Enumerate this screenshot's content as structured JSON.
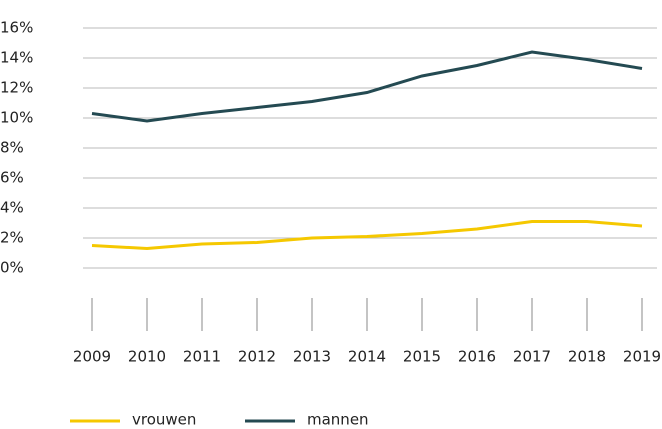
{
  "chart_data": {
    "type": "line",
    "categories": [
      "2009",
      "2010",
      "2011",
      "2012",
      "2013",
      "2014",
      "2015",
      "2016",
      "2017",
      "2018",
      "2019"
    ],
    "series": [
      {
        "name": "vrouwen",
        "color": "#f5c800",
        "values": [
          1.5,
          1.3,
          1.6,
          1.7,
          2.0,
          2.1,
          2.3,
          2.6,
          3.1,
          3.1,
          2.8
        ]
      },
      {
        "name": "mannen",
        "color": "#244a52",
        "values": [
          10.3,
          9.8,
          10.3,
          10.7,
          11.1,
          11.7,
          12.8,
          13.5,
          14.4,
          13.9,
          13.3
        ]
      }
    ],
    "ylim": [
      0,
      16
    ],
    "yticks": [
      {
        "value": 0,
        "label": "0%"
      },
      {
        "value": 2,
        "label": "2%"
      },
      {
        "value": 4,
        "label": "4%"
      },
      {
        "value": 6,
        "label": "6%"
      },
      {
        "value": 8,
        "label": "8%"
      },
      {
        "value": 10,
        "label": "10%"
      },
      {
        "value": 12,
        "label": "12%"
      },
      {
        "value": 14,
        "label": "14%"
      },
      {
        "value": 16,
        "label": "16%"
      }
    ],
    "grid": true
  }
}
